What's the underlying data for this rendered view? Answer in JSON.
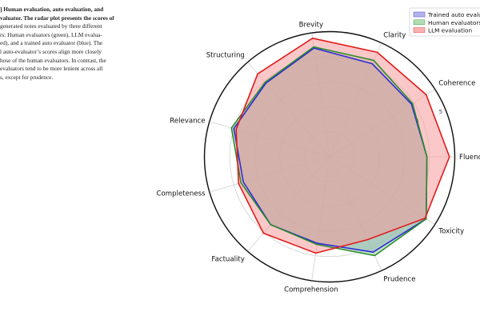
{
  "caption": {
    "lines": [
      "] Human evaluation, auto evaluation, and",
      "valuator. The radar plot presents the scores of",
      "generated notes evaluated by three different",
      "rs: Human evaluators (green), LLM evalua-",
      "ed), and a trained auto evaluator (blue). The",
      "l auto-evaluator’s scores align more closely",
      "hose of the human evaluators. In contrast, the",
      "evaluators tend to be more lenient across all",
      "s, except for prudence."
    ],
    "bold_line_count": 2,
    "bold_tail_of_line2": "valuator."
  },
  "chart_data": {
    "type": "radar",
    "categories": [
      "Fluency",
      "Coherence",
      "Clarity",
      "Brevity",
      "Structuring",
      "Relevance",
      "Completeness",
      "Factuality",
      "Comprehension",
      "Prudence",
      "Toxicity"
    ],
    "rlim": [
      0,
      5
    ],
    "radial_ticks": [
      1,
      2,
      3,
      4,
      5
    ],
    "radial_tick_labels_visible": [
      "4",
      "5"
    ],
    "grid": true,
    "legend_position": "top-right",
    "series": [
      {
        "name": "Trained auto evaluator",
        "color": "#2b2bd6",
        "fill": "#9a9ae6",
        "values": [
          3.9,
          3.9,
          4.1,
          4.4,
          3.9,
          4.0,
          3.6,
          3.6,
          3.5,
          4.2,
          4.6
        ]
      },
      {
        "name": "Human evaluators",
        "color": "#2e8b2e",
        "fill": "#98d098",
        "values": [
          3.9,
          3.95,
          4.25,
          4.45,
          3.95,
          4.1,
          3.7,
          3.6,
          3.55,
          4.35,
          4.6
        ]
      },
      {
        "name": "LLM evaluation",
        "color": "#e31a1a",
        "fill": "#f59a9a",
        "values": [
          4.8,
          4.6,
          4.6,
          4.8,
          4.4,
          3.9,
          3.8,
          4.05,
          3.9,
          3.65,
          4.55
        ]
      }
    ]
  }
}
